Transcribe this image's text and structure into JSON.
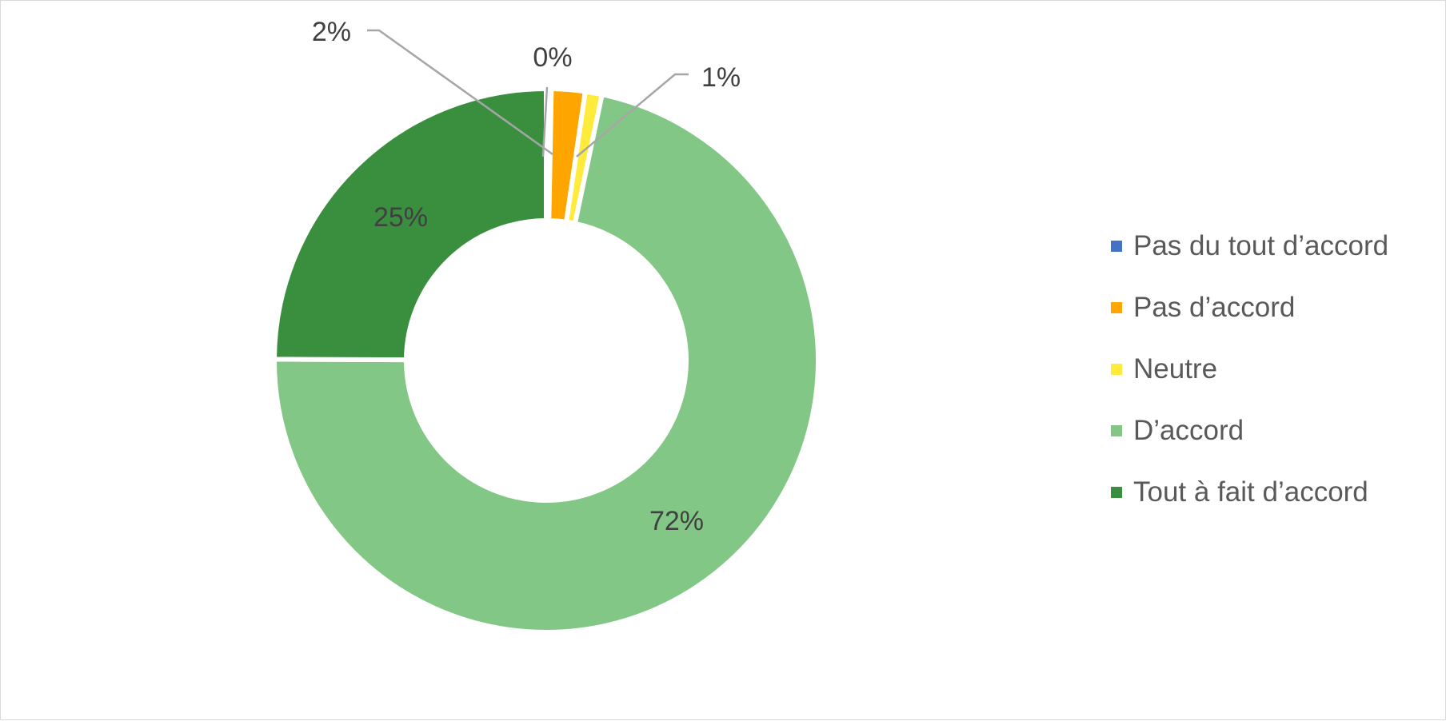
{
  "chart_data": {
    "type": "pie",
    "variant": "doughnut",
    "categories": [
      "Pas du tout d’accord",
      "Pas d’accord",
      "Neutre",
      "D’accord",
      "Tout à fait d’accord"
    ],
    "values": [
      0.3,
      2,
      1,
      72,
      25
    ],
    "data_labels": [
      "0%",
      "2%",
      "1%",
      "72%",
      "25%"
    ],
    "colors": [
      "#4472C4",
      "#FFA500",
      "#FFEB3B",
      "#82C785",
      "#3A8F3F"
    ],
    "label_colors": {
      "label": "#404040",
      "leader": "#A6A6A6",
      "border": "#D9D9D9"
    },
    "legend_placement": "right",
    "title": ""
  }
}
